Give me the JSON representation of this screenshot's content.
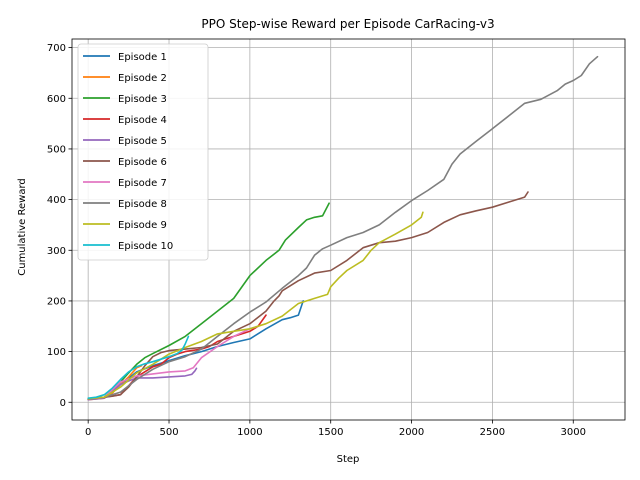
{
  "chart_data": {
    "type": "line",
    "title": "PPO Step-wise Reward per Episode CarRacing-v3",
    "xlabel": "Step",
    "ylabel": "Cumulative Reward",
    "xlim": [
      -100,
      3320
    ],
    "ylim": [
      -35,
      717
    ],
    "xticks": [
      0,
      500,
      1000,
      1500,
      2000,
      2500,
      3000
    ],
    "yticks": [
      0,
      100,
      200,
      300,
      400,
      500,
      600,
      700
    ],
    "grid": true,
    "legend": "top-left",
    "series": [
      {
        "name": "Episode 1",
        "color": "#1f77b4",
        "x": [
          0,
          100,
          200,
          300,
          400,
          500,
          600,
          700,
          800,
          900,
          1000,
          1100,
          1200,
          1250,
          1300,
          1330
        ],
        "y": [
          6,
          10,
          35,
          60,
          72,
          82,
          92,
          100,
          110,
          118,
          125,
          145,
          163,
          167,
          172,
          200
        ]
      },
      {
        "name": "Episode 2",
        "color": "#ff7f0e",
        "x": [
          0,
          100,
          150,
          200,
          250,
          300,
          330
        ],
        "y": [
          5,
          8,
          18,
          35,
          50,
          68,
          72
        ]
      },
      {
        "name": "Episode 3",
        "color": "#2ca02c",
        "x": [
          0,
          100,
          200,
          250,
          300,
          350,
          400,
          500,
          600,
          700,
          800,
          900,
          1000,
          1100,
          1180,
          1220,
          1300,
          1350,
          1400,
          1450,
          1490
        ],
        "y": [
          6,
          10,
          40,
          58,
          75,
          88,
          96,
          112,
          130,
          155,
          180,
          205,
          250,
          280,
          300,
          320,
          345,
          360,
          365,
          368,
          393
        ]
      },
      {
        "name": "Episode 4",
        "color": "#d62728",
        "x": [
          0,
          100,
          200,
          300,
          400,
          450,
          500,
          550,
          600,
          700,
          750,
          800,
          850,
          900,
          950,
          1000,
          1050,
          1100
        ],
        "y": [
          7,
          10,
          15,
          50,
          70,
          75,
          88,
          95,
          100,
          105,
          110,
          120,
          125,
          130,
          135,
          140,
          150,
          172
        ]
      },
      {
        "name": "Episode 5",
        "color": "#9467bd",
        "x": [
          0,
          100,
          200,
          250,
          300,
          400,
          500,
          600,
          640,
          660,
          670
        ],
        "y": [
          5,
          8,
          35,
          42,
          48,
          48,
          50,
          52,
          55,
          62,
          67
        ]
      },
      {
        "name": "Episode 6",
        "color": "#8c564b",
        "x": [
          0,
          100,
          150,
          200,
          250,
          300,
          350,
          400,
          450,
          500,
          600,
          700,
          800,
          900,
          1000,
          1100,
          1150,
          1180,
          1200,
          1300,
          1400,
          1500,
          1600,
          1700,
          1800,
          1900,
          2000,
          2100,
          2200,
          2300,
          2400,
          2500,
          2600,
          2700,
          2720
        ],
        "y": [
          6,
          10,
          12,
          15,
          30,
          50,
          72,
          90,
          98,
          102,
          105,
          108,
          115,
          140,
          155,
          180,
          200,
          210,
          220,
          240,
          255,
          260,
          280,
          305,
          315,
          318,
          325,
          335,
          355,
          370,
          378,
          385,
          395,
          405,
          415
        ]
      },
      {
        "name": "Episode 7",
        "color": "#e377c2",
        "x": [
          0,
          100,
          200,
          300,
          400,
          500,
          600,
          650,
          700,
          800,
          900,
          1000,
          1050
        ],
        "y": [
          6,
          10,
          40,
          52,
          56,
          60,
          62,
          68,
          88,
          110,
          130,
          145,
          150
        ]
      },
      {
        "name": "Episode 8",
        "color": "#7f7f7f",
        "x": [
          0,
          100,
          200,
          300,
          400,
          500,
          600,
          700,
          800,
          900,
          1000,
          1100,
          1200,
          1300,
          1350,
          1400,
          1450,
          1500,
          1600,
          1700,
          1800,
          1900,
          2000,
          2100,
          2200,
          2250,
          2300,
          2400,
          2500,
          2600,
          2700,
          2800,
          2900,
          2950,
          3000,
          3050,
          3100,
          3150
        ],
        "y": [
          6,
          10,
          20,
          45,
          65,
          80,
          90,
          105,
          130,
          155,
          178,
          198,
          225,
          250,
          265,
          290,
          303,
          310,
          325,
          335,
          350,
          375,
          398,
          418,
          440,
          470,
          490,
          515,
          540,
          565,
          590,
          598,
          615,
          628,
          635,
          645,
          668,
          682
        ]
      },
      {
        "name": "Episode 9",
        "color": "#bcbd22",
        "x": [
          0,
          100,
          200,
          300,
          400,
          500,
          600,
          700,
          800,
          900,
          1000,
          1100,
          1200,
          1300,
          1400,
          1450,
          1480,
          1500,
          1550,
          1600,
          1700,
          1750,
          1800,
          1900,
          2000,
          2060,
          2070
        ],
        "y": [
          7,
          10,
          30,
          58,
          75,
          95,
          108,
          120,
          135,
          140,
          145,
          155,
          170,
          195,
          205,
          210,
          213,
          228,
          245,
          260,
          280,
          300,
          315,
          332,
          350,
          365,
          375
        ]
      },
      {
        "name": "Episode 10",
        "color": "#17becf",
        "x": [
          0,
          50,
          100,
          150,
          200,
          250,
          300,
          350,
          400,
          450,
          500,
          550,
          580,
          600,
          620
        ],
        "y": [
          8,
          10,
          15,
          28,
          45,
          60,
          70,
          76,
          80,
          85,
          90,
          96,
          103,
          115,
          130
        ]
      }
    ]
  }
}
